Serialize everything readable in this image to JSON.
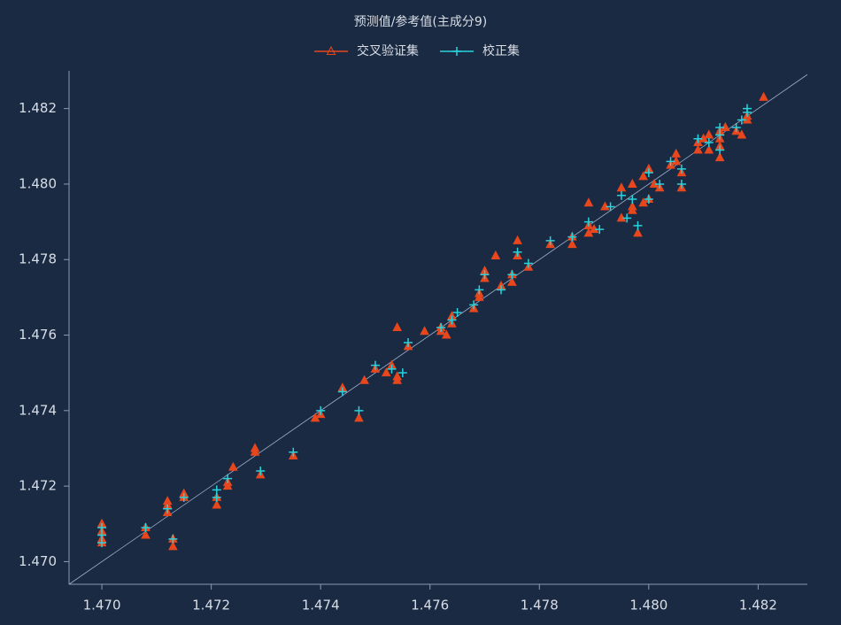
{
  "chart_data": {
    "type": "scatter",
    "title": "预测值/参考值(主成分9)",
    "xlim": [
      1.4694,
      1.4829
    ],
    "ylim": [
      1.4694,
      1.483
    ],
    "xticks": [
      {
        "value": 1.47,
        "label": "1.470"
      },
      {
        "value": 1.472,
        "label": "1.472"
      },
      {
        "value": 1.474,
        "label": "1.474"
      },
      {
        "value": 1.476,
        "label": "1.476"
      },
      {
        "value": 1.478,
        "label": "1.478"
      },
      {
        "value": 1.48,
        "label": "1.480"
      },
      {
        "value": 1.482,
        "label": "1.482"
      }
    ],
    "yticks": [
      {
        "value": 1.47,
        "label": "1.470"
      },
      {
        "value": 1.472,
        "label": "1.472"
      },
      {
        "value": 1.474,
        "label": "1.474"
      },
      {
        "value": 1.476,
        "label": "1.476"
      },
      {
        "value": 1.478,
        "label": "1.478"
      },
      {
        "value": 1.48,
        "label": "1.480"
      },
      {
        "value": 1.482,
        "label": "1.482"
      }
    ],
    "reference_line": true,
    "series": [
      {
        "name": "交叉验证集",
        "color": "#e8461c",
        "marker": "triangle",
        "x": [
          1.47,
          1.47,
          1.47,
          1.47,
          1.4708,
          1.4708,
          1.4712,
          1.4712,
          1.4712,
          1.4713,
          1.4713,
          1.4715,
          1.4715,
          1.4721,
          1.4721,
          1.4723,
          1.4723,
          1.4724,
          1.4728,
          1.4728,
          1.4729,
          1.4735,
          1.4739,
          1.474,
          1.4744,
          1.4747,
          1.4748,
          1.475,
          1.4752,
          1.4753,
          1.4754,
          1.4754,
          1.4754,
          1.4756,
          1.4759,
          1.4762,
          1.4762,
          1.4763,
          1.4764,
          1.4764,
          1.4768,
          1.4769,
          1.4769,
          1.477,
          1.477,
          1.4772,
          1.4773,
          1.4775,
          1.4775,
          1.4776,
          1.4776,
          1.4778,
          1.4782,
          1.4786,
          1.4786,
          1.4789,
          1.4789,
          1.4789,
          1.479,
          1.4792,
          1.4795,
          1.4795,
          1.4797,
          1.4797,
          1.4797,
          1.4798,
          1.4799,
          1.4799,
          1.48,
          1.48,
          1.4801,
          1.4802,
          1.4804,
          1.4805,
          1.4805,
          1.4806,
          1.4806,
          1.4809,
          1.4809,
          1.481,
          1.4811,
          1.4811,
          1.4813,
          1.4813,
          1.4813,
          1.4813,
          1.4814,
          1.4816,
          1.4817,
          1.4818,
          1.4818,
          1.4821
        ],
        "values": [
          1.471,
          1.4708,
          1.4706,
          1.4705,
          1.4709,
          1.4707,
          1.4715,
          1.4713,
          1.4716,
          1.4704,
          1.4706,
          1.4718,
          1.4717,
          1.4717,
          1.4715,
          1.4721,
          1.472,
          1.4725,
          1.473,
          1.4729,
          1.4723,
          1.4728,
          1.4738,
          1.4739,
          1.4746,
          1.4738,
          1.4748,
          1.4751,
          1.475,
          1.4752,
          1.4748,
          1.4749,
          1.4762,
          1.4757,
          1.4761,
          1.4762,
          1.4761,
          1.476,
          1.4763,
          1.4765,
          1.4767,
          1.4771,
          1.477,
          1.4775,
          1.4777,
          1.4781,
          1.4773,
          1.4774,
          1.4776,
          1.4785,
          1.4781,
          1.4778,
          1.4784,
          1.4784,
          1.4786,
          1.4789,
          1.4795,
          1.4787,
          1.4788,
          1.4794,
          1.4799,
          1.4791,
          1.48,
          1.4794,
          1.4793,
          1.4787,
          1.4795,
          1.4802,
          1.4804,
          1.4796,
          1.48,
          1.4799,
          1.4805,
          1.4808,
          1.4806,
          1.4799,
          1.4803,
          1.4809,
          1.4811,
          1.4812,
          1.4813,
          1.4809,
          1.4807,
          1.4814,
          1.4812,
          1.481,
          1.4815,
          1.4814,
          1.4813,
          1.4818,
          1.4817,
          1.4823
        ]
      },
      {
        "name": "校正集",
        "color": "#27d3dc",
        "marker": "plus",
        "x": [
          1.47,
          1.47,
          1.47,
          1.4708,
          1.4712,
          1.4713,
          1.4715,
          1.4721,
          1.4721,
          1.4723,
          1.4729,
          1.4735,
          1.474,
          1.4744,
          1.4747,
          1.475,
          1.4753,
          1.4755,
          1.4756,
          1.4762,
          1.4764,
          1.4765,
          1.4768,
          1.4769,
          1.477,
          1.4773,
          1.4775,
          1.4776,
          1.4778,
          1.4782,
          1.4786,
          1.4789,
          1.4791,
          1.4793,
          1.4795,
          1.4796,
          1.4797,
          1.4798,
          1.48,
          1.48,
          1.4802,
          1.4804,
          1.4806,
          1.4806,
          1.4809,
          1.4811,
          1.4813,
          1.4813,
          1.4813,
          1.4816,
          1.4817,
          1.4818,
          1.4818
        ],
        "values": [
          1.4705,
          1.4707,
          1.4709,
          1.4709,
          1.4714,
          1.4706,
          1.4717,
          1.4719,
          1.4717,
          1.4722,
          1.4724,
          1.4729,
          1.474,
          1.4745,
          1.474,
          1.4752,
          1.4751,
          1.475,
          1.4758,
          1.4762,
          1.4764,
          1.4766,
          1.4768,
          1.4772,
          1.4776,
          1.4772,
          1.4776,
          1.4782,
          1.4779,
          1.4785,
          1.4786,
          1.479,
          1.4788,
          1.4794,
          1.4797,
          1.4791,
          1.4796,
          1.4789,
          1.4796,
          1.4803,
          1.48,
          1.4806,
          1.4804,
          1.48,
          1.4812,
          1.4811,
          1.4809,
          1.4815,
          1.4813,
          1.4815,
          1.4817,
          1.4819,
          1.482
        ]
      }
    ]
  }
}
